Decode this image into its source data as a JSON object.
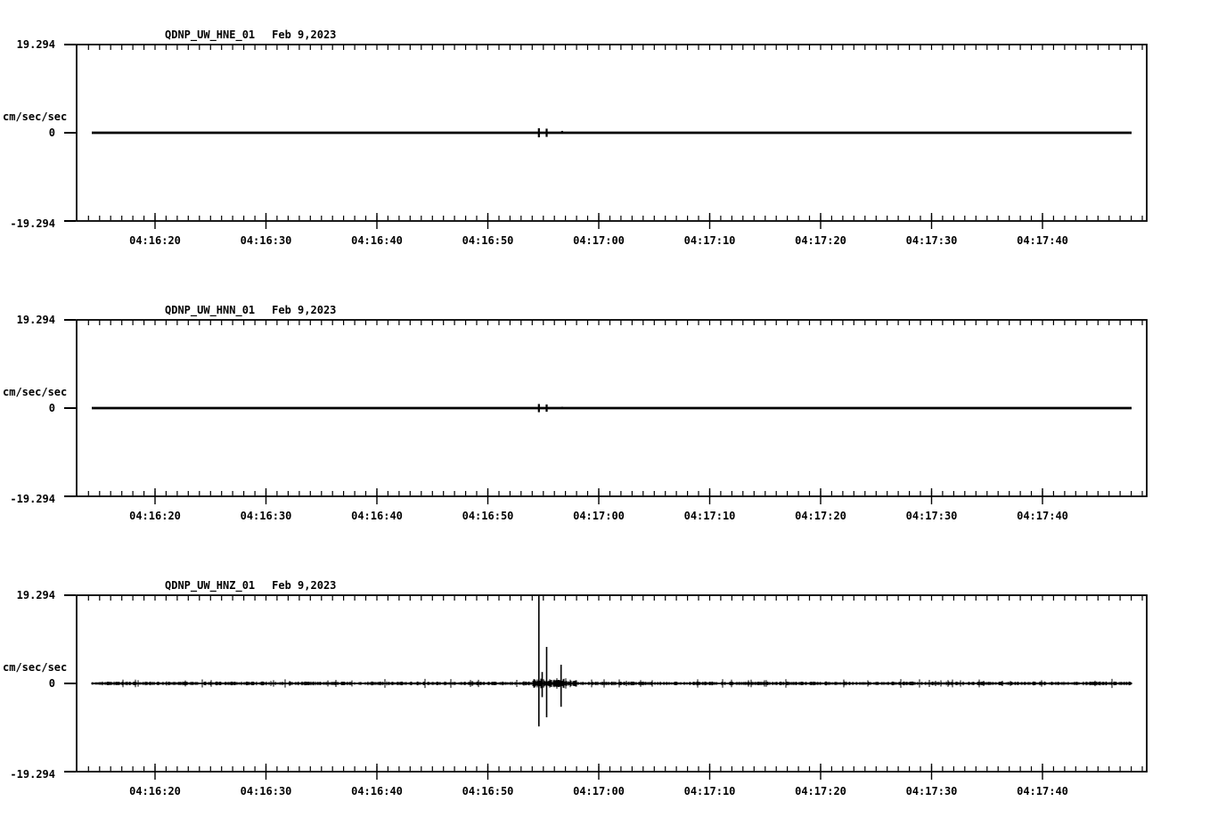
{
  "figure": {
    "background": "#ffffff",
    "foreground": "#000000"
  },
  "chart_data": [
    {
      "type": "line",
      "station": "QDNP_UW_HNE_01",
      "date": "Feb 9,2023",
      "ylabel": "cm/sec/sec",
      "ylim": [
        -19.294,
        19.294
      ],
      "yticks": [
        19.294,
        0,
        -19.294
      ],
      "ytick_labels": [
        "19.294",
        "0",
        "-19.294"
      ],
      "x_start": "04:16:13",
      "x_end": "04:17:49",
      "x_minor_interval_s": 1,
      "x_major_interval_s": 10,
      "x_major_tick_labels": [
        "04:16:20",
        "04:16:30",
        "04:16:40",
        "04:16:50",
        "04:17:00",
        "04:17:10",
        "04:17:20",
        "04:17:30",
        "04:17:40"
      ],
      "baseline": 0,
      "noise_amp": 0,
      "events": [
        {
          "time": "04:16:54.6",
          "amp_up": 1.0,
          "amp_down": 1.0
        },
        {
          "time": "04:16:55.3",
          "amp_up": 0.9,
          "amp_down": 0.9
        },
        {
          "time": "04:16:56.7",
          "amp_up": 0.4,
          "amp_down": 0.2
        }
      ]
    },
    {
      "type": "line",
      "station": "QDNP_UW_HNN_01",
      "date": "Feb 9,2023",
      "ylabel": "cm/sec/sec",
      "ylim": [
        -19.294,
        19.294
      ],
      "yticks": [
        19.294,
        0,
        -19.294
      ],
      "ytick_labels": [
        "19.294",
        "0",
        "-19.294"
      ],
      "x_start": "04:16:13",
      "x_end": "04:17:49",
      "x_minor_interval_s": 1,
      "x_major_interval_s": 10,
      "x_major_tick_labels": [
        "04:16:20",
        "04:16:30",
        "04:16:40",
        "04:16:50",
        "04:17:00",
        "04:17:10",
        "04:17:20",
        "04:17:30",
        "04:17:40"
      ],
      "baseline": 0,
      "noise_amp": 0,
      "events": [
        {
          "time": "04:16:54.6",
          "amp_up": 0.9,
          "amp_down": 0.9
        },
        {
          "time": "04:16:55.3",
          "amp_up": 0.8,
          "amp_down": 0.8
        },
        {
          "time": "04:16:56.7",
          "amp_up": 0.3,
          "amp_down": 0.15
        }
      ]
    },
    {
      "type": "line",
      "station": "QDNP_UW_HNZ_01",
      "date": "Feb 9,2023",
      "ylabel": "cm/sec/sec",
      "ylim": [
        -19.294,
        19.294
      ],
      "yticks": [
        19.294,
        0,
        -19.294
      ],
      "ytick_labels": [
        "19.294",
        "0",
        "-19.294"
      ],
      "x_start": "04:16:13",
      "x_end": "04:17:49",
      "x_minor_interval_s": 1,
      "x_major_interval_s": 10,
      "x_major_tick_labels": [
        "04:16:20",
        "04:16:30",
        "04:16:40",
        "04:16:50",
        "04:17:00",
        "04:17:10",
        "04:17:20",
        "04:17:30",
        "04:17:40"
      ],
      "baseline": 0,
      "noise_amp": 0.3,
      "noise_burst": {
        "time_range": [
          "04:16:54.0",
          "04:16:58.0"
        ],
        "amp": 0.8
      },
      "events": [
        {
          "time": "04:16:54.6",
          "amp_up": 19.3,
          "amp_down": 9.4
        },
        {
          "time": "04:16:54.9",
          "amp_up": 2.5,
          "amp_down": 3.0
        },
        {
          "time": "04:16:55.3",
          "amp_up": 8.0,
          "amp_down": 7.4
        },
        {
          "time": "04:16:56.6",
          "amp_up": 4.1,
          "amp_down": 5.1
        }
      ]
    }
  ]
}
